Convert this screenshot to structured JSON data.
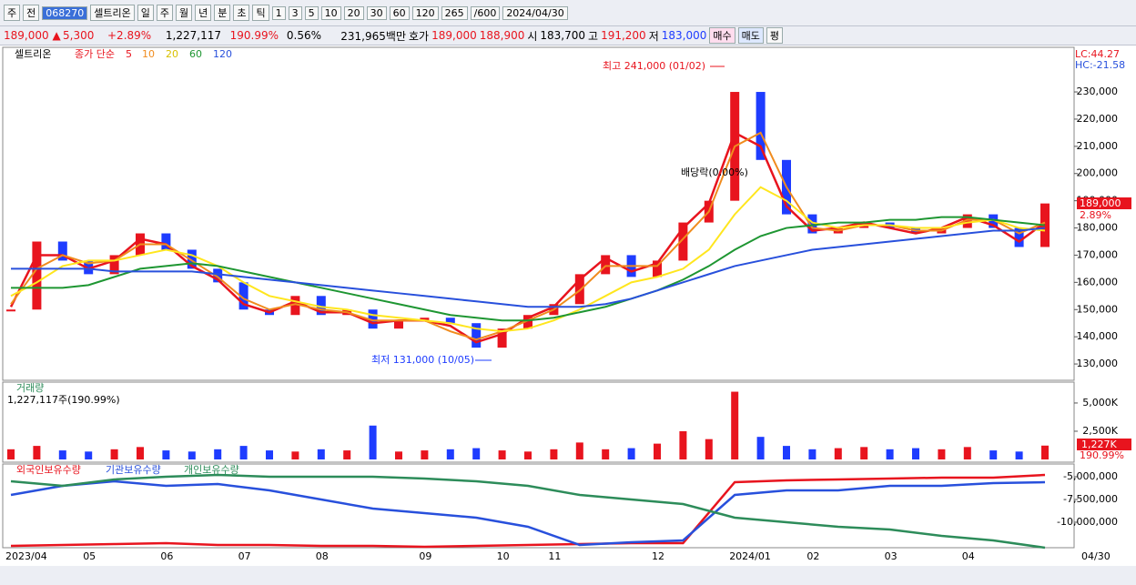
{
  "toolbar": {
    "items": [
      "주",
      "전",
      "068270",
      "셀트리온",
      "일",
      "주",
      "월",
      "년",
      "분",
      "초",
      "틱",
      "1",
      "3",
      "5",
      "10",
      "20",
      "30",
      "60",
      "120",
      "265",
      "/600",
      "2024/04/30"
    ]
  },
  "infobar": {
    "price": "189,000 ▲",
    "change": "5,300",
    "rate": "+2.89%",
    "volume": "1,227,117",
    "volume_rate": "190.99%",
    "turnover": "0.56%",
    "amount": "231,965백만",
    "quote_label": "호가",
    "ask": "189,000",
    "bid": "188,900",
    "open_label": "시",
    "open": "183,700",
    "high_label": "고",
    "high": "191,200",
    "low_label": "저",
    "low": "183,000",
    "buy": "매수",
    "sell": "매도",
    "avg": "평"
  },
  "chart_data": [
    {
      "type": "candlestick",
      "name": "셀트리온",
      "legend_label": "종가 단순",
      "lc": "LC:44.27",
      "hc": "HC:-21.58",
      "annotations": {
        "high": "최고 241,000 (01/02)",
        "low": "최저 131,000 (10/05)",
        "dividend": "배당락(0.00%)"
      },
      "last_price_label": "189,000",
      "last_rate_label": "2.89%",
      "categories": [
        "2023/04",
        null,
        null,
        "05",
        null,
        null,
        "06",
        null,
        null,
        "07",
        null,
        null,
        "08",
        null,
        null,
        null,
        "09",
        null,
        null,
        "10",
        null,
        "11",
        null,
        null,
        null,
        "12",
        null,
        null,
        "2024/01",
        null,
        null,
        "02",
        null,
        null,
        "03",
        null,
        null,
        "04",
        null,
        null,
        null
      ],
      "end_label": "04/30",
      "values": [
        150000,
        175000,
        168000,
        163000,
        170000,
        178000,
        172000,
        165000,
        160000,
        150000,
        148000,
        155000,
        148000,
        150000,
        143000,
        146000,
        147000,
        145000,
        136000,
        143000,
        148000,
        152000,
        163000,
        170000,
        162000,
        168000,
        182000,
        190000,
        230000,
        205000,
        185000,
        178000,
        180000,
        182000,
        180000,
        178000,
        180000,
        185000,
        180000,
        173000,
        189000
      ],
      "up_color": "#e8141e",
      "down_color": "#1e3cff",
      "series": [
        {
          "name": "5",
          "color": "#e8141e",
          "values": [
            151000,
            170000,
            170000,
            165000,
            168000,
            176000,
            174000,
            166000,
            161000,
            152000,
            149000,
            153000,
            149000,
            149000,
            145000,
            146000,
            146000,
            144000,
            138000,
            141000,
            147000,
            151000,
            161000,
            169000,
            164000,
            167000,
            180000,
            189000,
            215000,
            210000,
            188000,
            179000,
            180000,
            182000,
            180000,
            178000,
            180000,
            184000,
            181000,
            175000,
            182000
          ]
        },
        {
          "name": "10",
          "color": "#f08c1e",
          "values": [
            152000,
            165000,
            170000,
            167000,
            168000,
            174000,
            174000,
            168000,
            162000,
            154000,
            150000,
            152000,
            150000,
            149000,
            146000,
            146000,
            146000,
            142000,
            139000,
            142000,
            146000,
            150000,
            157000,
            166000,
            166000,
            166000,
            176000,
            186000,
            210000,
            215000,
            195000,
            180000,
            179000,
            181000,
            181000,
            179000,
            179000,
            183000,
            183000,
            178000,
            182000
          ]
        },
        {
          "name": "20",
          "color": "#ffe61e",
          "values": [
            155000,
            160000,
            166000,
            168000,
            168000,
            170000,
            172000,
            170000,
            166000,
            160000,
            155000,
            153000,
            151000,
            150000,
            148000,
            147000,
            146000,
            145000,
            143000,
            142000,
            143000,
            146000,
            150000,
            155000,
            160000,
            162000,
            165000,
            172000,
            185000,
            195000,
            190000,
            182000,
            180000,
            181000,
            181000,
            180000,
            180000,
            182000,
            183000,
            180000,
            179000
          ]
        },
        {
          "name": "60",
          "color": "#1e9632",
          "values": [
            158000,
            158000,
            158000,
            159000,
            162000,
            165000,
            166000,
            167000,
            166000,
            164000,
            162000,
            160000,
            158000,
            156000,
            154000,
            152000,
            150000,
            148000,
            147000,
            146000,
            146000,
            147000,
            149000,
            151000,
            154000,
            157000,
            161000,
            166000,
            172000,
            177000,
            180000,
            181000,
            182000,
            182000,
            183000,
            183000,
            184000,
            184000,
            183000,
            182000,
            181000
          ]
        },
        {
          "name": "120",
          "color": "#2850dc",
          "values": [
            165000,
            165000,
            165000,
            165000,
            164000,
            164000,
            164000,
            164000,
            163000,
            162000,
            161000,
            160000,
            159000,
            158000,
            157000,
            156000,
            155000,
            154000,
            153000,
            152000,
            151000,
            151000,
            151000,
            152000,
            154000,
            157000,
            160000,
            163000,
            166000,
            168000,
            170000,
            172000,
            173000,
            174000,
            175000,
            176000,
            177000,
            178000,
            179000,
            179000,
            180000
          ]
        }
      ],
      "ylim": [
        124000,
        246400
      ],
      "yticks": [
        {
          "value": 130000,
          "label": "130,000"
        },
        {
          "value": 140000,
          "label": "140,000"
        },
        {
          "value": 150000,
          "label": "150,000"
        },
        {
          "value": 160000,
          "label": "160,000"
        },
        {
          "value": 170000,
          "label": "170,000"
        },
        {
          "value": 180000,
          "label": "180,000"
        },
        {
          "value": 190000,
          "label": "190,000"
        },
        {
          "value": 200000,
          "label": "200,000"
        },
        {
          "value": 210000,
          "label": "210,000"
        },
        {
          "value": 220000,
          "label": "220,000"
        },
        {
          "value": 230000,
          "label": "230,000"
        }
      ]
    },
    {
      "type": "bar",
      "title": "거래량",
      "subtitle": "1,227,117주(190.99%)",
      "last_label": "1,227K",
      "last_rate_label": "190.99%",
      "values": [
        900000,
        1200000,
        800000,
        700000,
        900000,
        1100000,
        800000,
        700000,
        900000,
        1200000,
        800000,
        700000,
        900000,
        800000,
        3000000,
        700000,
        800000,
        900000,
        1000000,
        800000,
        700000,
        900000,
        1500000,
        900000,
        1000000,
        1400000,
        2500000,
        1800000,
        6000000,
        2000000,
        1200000,
        900000,
        1000000,
        1100000,
        900000,
        1000000,
        900000,
        1100000,
        800000,
        700000,
        1227117
      ],
      "ylim": [
        0,
        6850000
      ],
      "yticks": [
        {
          "value": 2500000,
          "label": "2,500K"
        },
        {
          "value": 5000000,
          "label": "5,000K"
        }
      ]
    },
    {
      "type": "line",
      "series": [
        {
          "name": "외국인보유수량",
          "color": "#e8141e",
          "values": [
            -12600000,
            -12500000,
            -12400000,
            -12300000,
            -12500000,
            -12500000,
            -12600000,
            -12600000,
            -12700000,
            -12600000,
            -12500000,
            -12400000,
            -12300000,
            -12300000,
            -5600000,
            -5400000,
            -5300000,
            -5200000,
            -5100000,
            -5100000,
            -4800000
          ]
        },
        {
          "name": "기관보유수량",
          "color": "#2850dc",
          "values": [
            -7000000,
            -6000000,
            -5500000,
            -6000000,
            -5800000,
            -6500000,
            -7500000,
            -8500000,
            -9000000,
            -9500000,
            -10500000,
            -12500000,
            -12200000,
            -12000000,
            -7000000,
            -6500000,
            -6500000,
            -6000000,
            -6000000,
            -5700000,
            -5600000
          ]
        },
        {
          "name": "개인보유수량",
          "color": "#2d8c5a",
          "values": [
            -5500000,
            -6000000,
            -5300000,
            -5000000,
            -4800000,
            -5000000,
            -5000000,
            -5000000,
            -5200000,
            -5500000,
            -6000000,
            -7000000,
            -7500000,
            -8000000,
            -9500000,
            -10000000,
            -10500000,
            -10800000,
            -11500000,
            -12000000,
            -12800000
          ]
        }
      ],
      "ylim": [
        -12800000,
        -3600000
      ],
      "yticks": [
        {
          "value": -5000000,
          "label": "-5,000,000"
        },
        {
          "value": -7500000,
          "label": "-7,500,000"
        },
        {
          "value": -10000000,
          "label": "-10,000,000"
        }
      ]
    }
  ]
}
